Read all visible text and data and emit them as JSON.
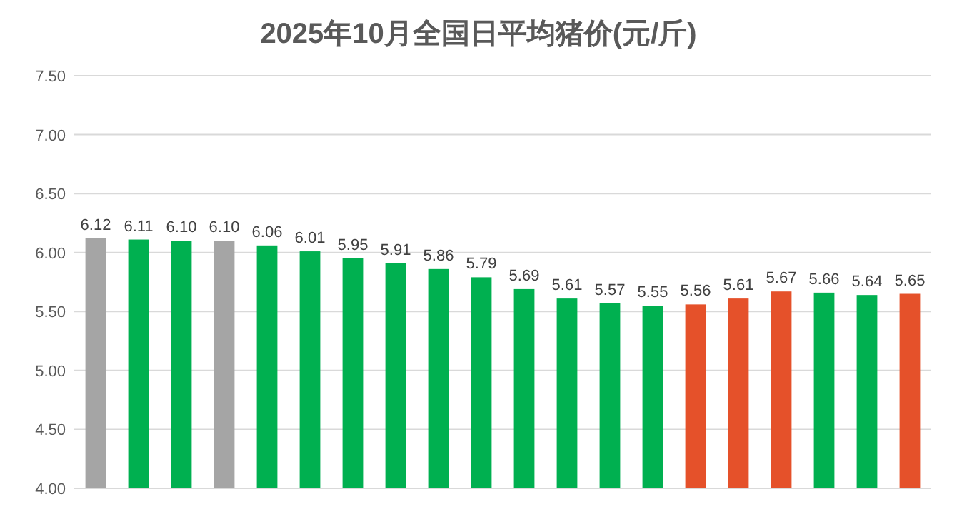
{
  "chart_data": {
    "type": "bar",
    "title": "2025年10月全国日平均猪价(元/斤)",
    "categories": [
      null,
      null,
      null,
      null,
      null,
      null,
      null,
      null,
      null,
      null,
      null,
      null,
      null,
      null,
      null,
      null,
      null,
      null,
      null,
      null
    ],
    "values": [
      6.12,
      6.11,
      6.1,
      6.1,
      6.06,
      6.01,
      5.95,
      5.91,
      5.86,
      5.79,
      5.69,
      5.61,
      5.57,
      5.55,
      5.56,
      5.61,
      5.67,
      5.66,
      5.64,
      5.65
    ],
    "value_labels": [
      "6.12",
      "6.11",
      "6.10",
      "6.10",
      "6.06",
      "6.01",
      "5.95",
      "5.91",
      "5.86",
      "5.79",
      "5.69",
      "5.61",
      "5.57",
      "5.55",
      "5.56",
      "5.61",
      "5.67",
      "5.66",
      "5.64",
      "5.65"
    ],
    "colors": [
      "#a5a5a5",
      "#00b050",
      "#00b050",
      "#a5a5a5",
      "#00b050",
      "#00b050",
      "#00b050",
      "#00b050",
      "#00b050",
      "#00b050",
      "#00b050",
      "#00b050",
      "#00b050",
      "#00b050",
      "#e5512a",
      "#e5512a",
      "#e5512a",
      "#00b050",
      "#00b050",
      "#e5512a"
    ],
    "ylim": [
      4.0,
      7.5
    ],
    "yticks": [
      {
        "value": 4.0,
        "label": "4.00"
      },
      {
        "value": 4.5,
        "label": "4.50"
      },
      {
        "value": 5.0,
        "label": "5.00"
      },
      {
        "value": 5.5,
        "label": "5.50"
      },
      {
        "value": 6.0,
        "label": "6.00"
      },
      {
        "value": 6.5,
        "label": "6.50"
      },
      {
        "value": 7.0,
        "label": "7.00"
      },
      {
        "value": 7.5,
        "label": "7.50"
      }
    ],
    "grid": "y"
  }
}
